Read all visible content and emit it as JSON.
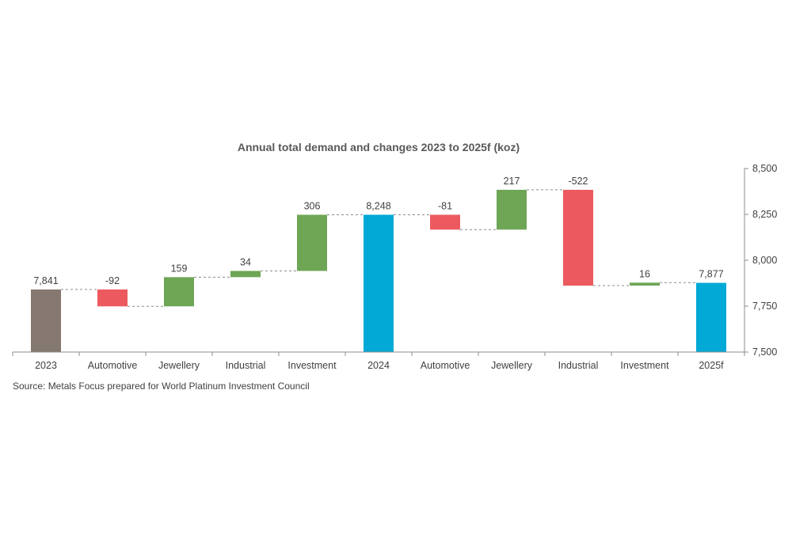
{
  "chart_data": {
    "type": "waterfall",
    "title": "Annual total demand and changes 2023 to 2025f (koz)",
    "categories": [
      "2023",
      "Automotive",
      "Jewellery",
      "Industrial",
      "Investment",
      "2024",
      "Automotive",
      "Jewellery",
      "Industrial",
      "Investment",
      "2025f"
    ],
    "steps": [
      {
        "category": "2023",
        "kind": "total",
        "value": 7841,
        "label": "7,841"
      },
      {
        "category": "Automotive",
        "kind": "change",
        "value": -92,
        "label": "-92"
      },
      {
        "category": "Jewellery",
        "kind": "change",
        "value": 159,
        "label": "159"
      },
      {
        "category": "Industrial",
        "kind": "change",
        "value": 34,
        "label": "34"
      },
      {
        "category": "Investment",
        "kind": "change",
        "value": 306,
        "label": "306"
      },
      {
        "category": "2024",
        "kind": "total",
        "value": 8248,
        "label": "8,248"
      },
      {
        "category": "Automotive",
        "kind": "change",
        "value": -81,
        "label": "-81"
      },
      {
        "category": "Jewellery",
        "kind": "change",
        "value": 217,
        "label": "217"
      },
      {
        "category": "Industrial",
        "kind": "change",
        "value": -522,
        "label": "-522"
      },
      {
        "category": "Investment",
        "kind": "change",
        "value": 16,
        "label": "16"
      },
      {
        "category": "2025f",
        "kind": "total",
        "value": 7877,
        "label": "7,877"
      }
    ],
    "y_axis": {
      "position": "right",
      "ylim": [
        7500,
        8500
      ],
      "ticks": [
        7500,
        7750,
        8000,
        8250,
        8500
      ],
      "tick_labels": [
        "7,500",
        "7,750",
        "8,000",
        "8,250",
        "8,500"
      ]
    },
    "colors": {
      "first_total": "#847870",
      "total": "#00a9d6",
      "increase": "#6ea655",
      "decrease": "#ec5a5f",
      "axis": "#8c8c8c",
      "connector": "#8c8c8c"
    },
    "source": "Source: Metals Focus prepared for World Platinum Investment Council"
  }
}
